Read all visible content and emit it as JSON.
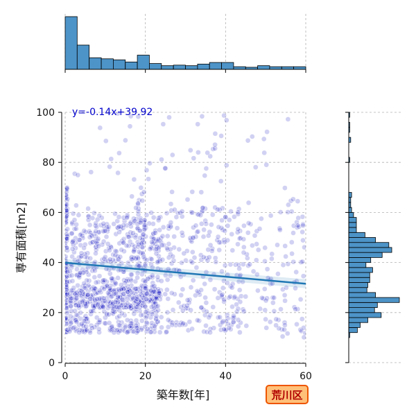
{
  "chart_data": {
    "type": "scatter",
    "xlabel": "築年数[年]",
    "ylabel": "専有面積[m2]",
    "xlim": [
      0,
      60
    ],
    "ylim": [
      0,
      100
    ],
    "xticks": [
      "0",
      "20",
      "40",
      "60"
    ],
    "yticks": [
      "0",
      "20",
      "40",
      "60",
      "80",
      "100"
    ],
    "grid": true,
    "regression": {
      "label": "y=-0.14x+39.92",
      "slope": -0.14,
      "intercept": 39.92
    },
    "region_badge": "荒川区",
    "point_color": "#0000bb",
    "line_color": "#1f77b4",
    "hist_color": "#4d94c8",
    "clusters": [
      {
        "x": [
          0,
          0.6
        ],
        "y": [
          12,
          70
        ],
        "n": 120
      },
      {
        "x": [
          1,
          24
        ],
        "y": [
          12,
          60
        ],
        "n": 650
      },
      {
        "x": [
          1,
          24
        ],
        "y": [
          22,
          30
        ],
        "n": 180
      },
      {
        "x": [
          18,
          20
        ],
        "y": [
          30,
          70
        ],
        "n": 40
      },
      {
        "x": [
          24,
          44
        ],
        "y": [
          12,
          62
        ],
        "n": 260
      },
      {
        "x": [
          44,
          60
        ],
        "y": [
          10,
          60
        ],
        "n": 110
      },
      {
        "x": [
          2,
          58
        ],
        "y": [
          60,
          100
        ],
        "n": 70
      }
    ],
    "x_hist": {
      "bin_edges": [
        0,
        3,
        6,
        9,
        12,
        15,
        18,
        21,
        24,
        27,
        30,
        33,
        36,
        39,
        42,
        45,
        48,
        51,
        54,
        57,
        60
      ],
      "counts": [
        100,
        46,
        22,
        20,
        18,
        14,
        27,
        11,
        7,
        8,
        7,
        10,
        13,
        13,
        5,
        4,
        7,
        5,
        5,
        5
      ]
    },
    "y_hist": {
      "bin_edges": [
        0,
        2,
        4,
        6,
        8,
        10,
        12,
        14,
        16,
        18,
        20,
        22,
        24,
        26,
        28,
        30,
        32,
        34,
        36,
        38,
        40,
        42,
        44,
        46,
        48,
        50,
        52,
        54,
        56,
        58,
        60,
        62,
        64,
        66,
        68,
        70,
        72,
        74,
        76,
        78,
        80,
        82,
        84,
        86,
        88,
        90,
        92,
        94,
        96,
        98,
        100
      ],
      "counts": [
        0,
        0,
        0,
        0,
        0,
        1,
        9,
        12,
        20,
        34,
        27,
        30,
        53,
        28,
        19,
        20,
        22,
        22,
        25,
        18,
        23,
        35,
        45,
        42,
        28,
        17,
        8,
        8,
        8,
        5,
        3,
        2,
        2,
        3,
        0,
        0,
        0,
        0,
        0,
        0,
        1,
        0,
        0,
        0,
        2,
        0,
        1,
        1,
        0,
        1
      ]
    }
  }
}
